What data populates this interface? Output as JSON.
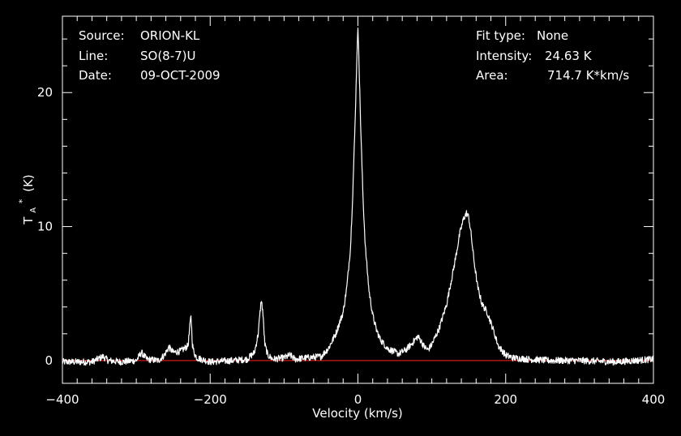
{
  "chart_data": {
    "type": "line",
    "xlabel": "Velocity (km/s)",
    "ylabel": {
      "main": "T",
      "sub": "A",
      "sup": "*",
      "unit": "(K)"
    },
    "xlim": [
      -400,
      400
    ],
    "ylim": [
      -1.7,
      25.7
    ],
    "x_ticks": [
      -400,
      -200,
      0,
      200,
      400
    ],
    "x_tick_labels": [
      "−400",
      "−200",
      "0",
      "200",
      "400"
    ],
    "y_ticks": [
      0,
      10,
      20
    ],
    "y_tick_labels": [
      "0",
      "10",
      "20"
    ],
    "grid": false,
    "baseline": 0,
    "series": [
      {
        "color": "#ffffff",
        "x": [
          -400,
          -360,
          -345,
          -338,
          -320,
          -300,
          -293,
          -286,
          -270,
          -262,
          -256,
          -250,
          -240,
          -230,
          -226,
          -224,
          -222,
          -218,
          -200,
          -170,
          -150,
          -140,
          -135,
          -131,
          -129,
          -126,
          -122,
          -115,
          -100,
          -92,
          -85,
          -70,
          -50,
          -40,
          -30,
          -20,
          -15,
          -10,
          -7,
          -4,
          -2,
          -1,
          0,
          1,
          2,
          4,
          7,
          10,
          15,
          20,
          25,
          30,
          40,
          55,
          65,
          72,
          78,
          81,
          85,
          90,
          95,
          100,
          110,
          120,
          130,
          138,
          143,
          147,
          150,
          153,
          157,
          162,
          168,
          175,
          182,
          190,
          200,
          210,
          230,
          260,
          300,
          350,
          400
        ],
        "y": [
          -0.1,
          -0.1,
          0.3,
          0.0,
          -0.1,
          0.0,
          0.6,
          0.1,
          0.0,
          0.4,
          1.0,
          0.6,
          0.7,
          1.1,
          3.4,
          1.2,
          0.6,
          0.2,
          -0.1,
          0.0,
          0.1,
          0.6,
          2.0,
          4.5,
          3.8,
          1.2,
          0.4,
          0.1,
          0.2,
          0.4,
          0.1,
          0.2,
          0.3,
          0.9,
          2.0,
          3.6,
          5.5,
          8.5,
          12.5,
          17.5,
          21.5,
          23.5,
          24.6,
          23.5,
          21.0,
          17.0,
          12.0,
          8.5,
          5.2,
          3.4,
          2.3,
          1.6,
          0.9,
          0.5,
          0.8,
          1.2,
          1.6,
          1.8,
          1.5,
          1.0,
          0.8,
          1.2,
          2.4,
          4.2,
          7.0,
          9.5,
          10.6,
          11.0,
          10.7,
          9.5,
          7.5,
          5.5,
          4.2,
          3.6,
          2.5,
          1.1,
          0.4,
          0.2,
          0.1,
          0.0,
          0.0,
          -0.1,
          0.1
        ]
      }
    ],
    "baseline_color": "#d11a1a"
  },
  "info_left": [
    {
      "label": "Source:",
      "value": "ORION-KL"
    },
    {
      "label": "Line:",
      "value": "SO(8-7)U"
    },
    {
      "label": "Date:",
      "value": "09-OCT-2009"
    }
  ],
  "info_right": [
    {
      "label": "Fit type:",
      "value": "None"
    },
    {
      "label": "Intensity:",
      "value": "24.63 K"
    },
    {
      "label": "Area:",
      "value": "714.7 K*km/s"
    }
  ],
  "colors": {
    "background": "#000000",
    "foreground": "#ffffff"
  }
}
